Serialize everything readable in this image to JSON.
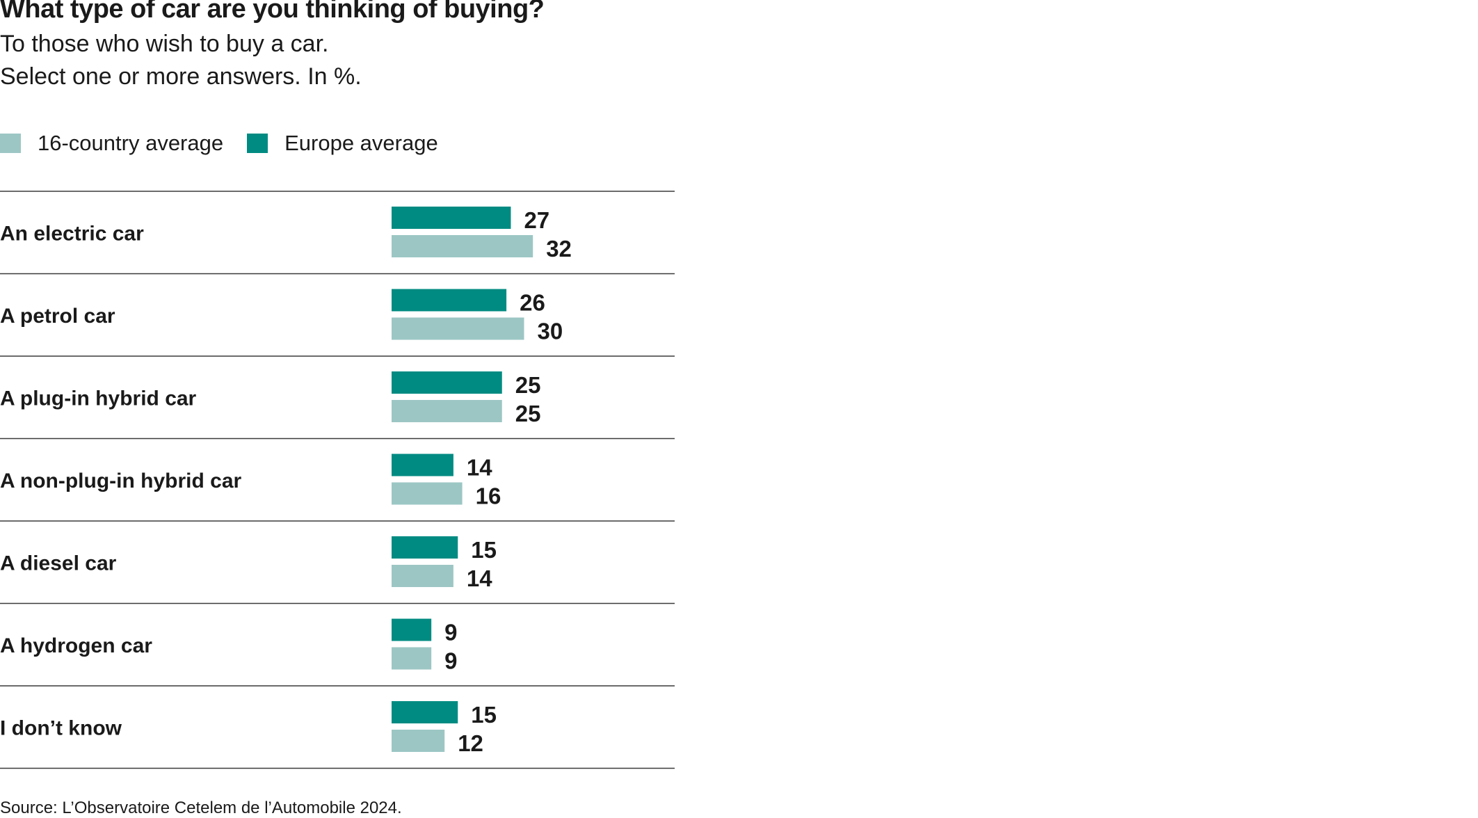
{
  "chart_data": {
    "type": "bar",
    "orientation": "horizontal",
    "title": "What type of car are you thinking of buying?",
    "subtitle": [
      "To those who wish to buy a car.",
      "Select one or more answers. In %."
    ],
    "categories": [
      "An electric car",
      "A petrol car",
      "A plug-in hybrid car",
      "A non-plug-in hybrid car",
      "A diesel car",
      "A hydrogen car",
      "I don’t know"
    ],
    "series": [
      {
        "name": "Europe average",
        "color": "#008b82",
        "values": [
          27,
          26,
          25,
          14,
          15,
          9,
          15
        ]
      },
      {
        "name": "16-country average",
        "color": "#9cc6c4",
        "values": [
          32,
          30,
          25,
          16,
          14,
          9,
          12
        ]
      }
    ],
    "legend": [
      {
        "label": "16-country average",
        "color": "#9cc6c4"
      },
      {
        "label": "Europe average",
        "color": "#008b82"
      }
    ],
    "xlim": [
      0,
      32
    ],
    "grid": false,
    "legend_position": "top-left",
    "source": "Source: L’Observatoire Cetelem de l’Automobile 2024."
  }
}
